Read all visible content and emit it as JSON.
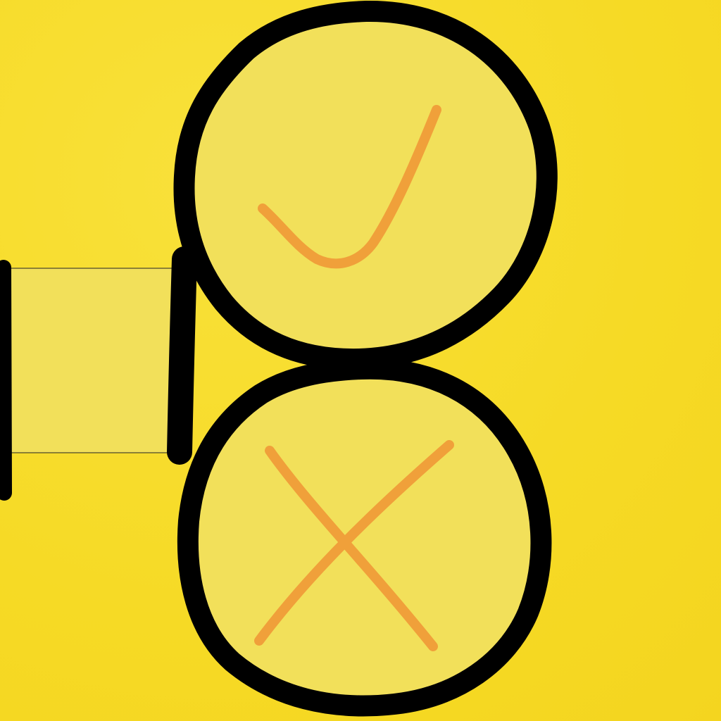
{
  "screen": {
    "title": "",
    "background_color": "#f7dc2a"
  },
  "controls": {
    "side_panel": {
      "fill_color": "#f2e05a",
      "outline_color": "#000000"
    },
    "confirm_button": {
      "icon": "check-mark-icon",
      "fill_color": "#f2e05a",
      "outline_color": "#000000",
      "icon_color": "#f0a03a"
    },
    "cancel_button": {
      "icon": "x-mark-icon",
      "fill_color": "#f2e05a",
      "outline_color": "#000000",
      "icon_color": "#f0a03a"
    }
  }
}
